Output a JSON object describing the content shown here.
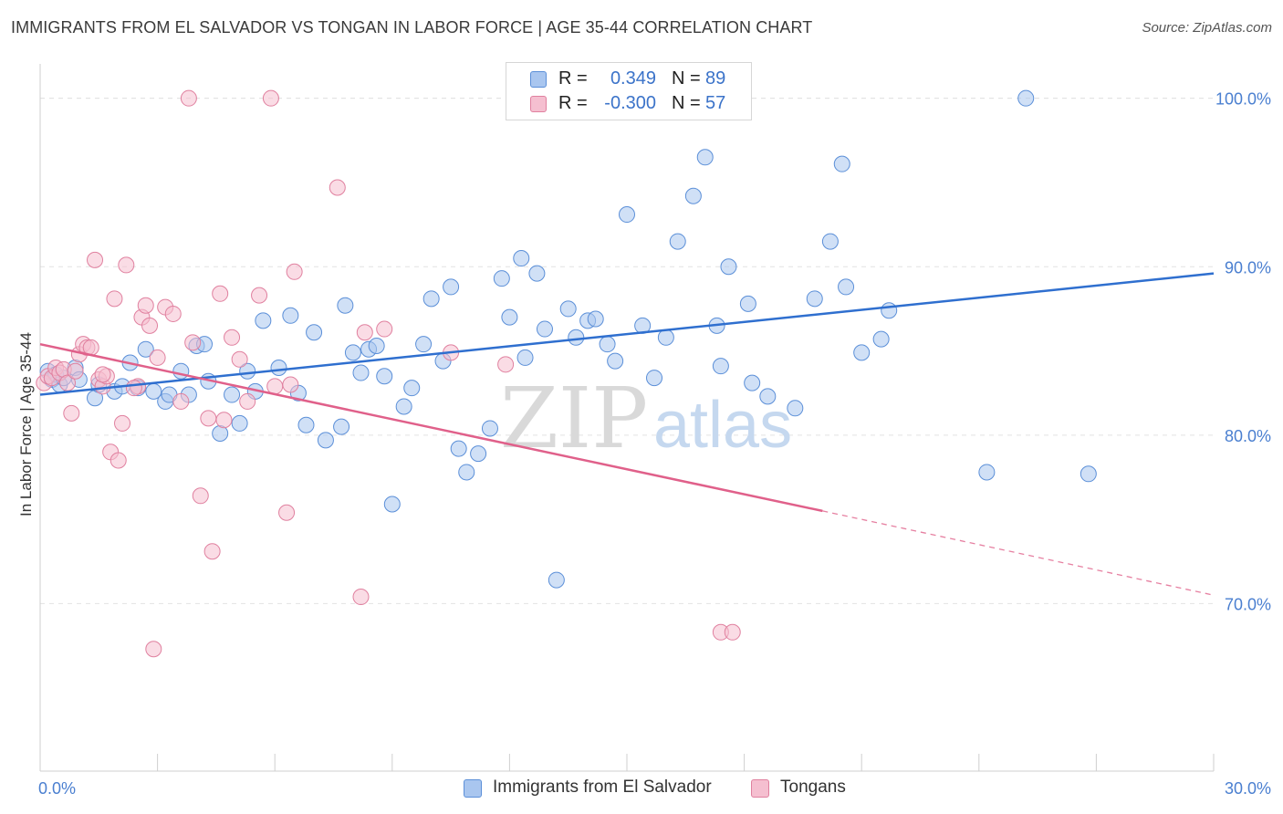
{
  "title": "IMMIGRANTS FROM EL SALVADOR VS TONGAN IN LABOR FORCE | AGE 35-44 CORRELATION CHART",
  "source": "Source: ZipAtlas.com",
  "watermark": {
    "zip": "ZIP",
    "atlas": "atlas"
  },
  "legend": {
    "r_label": "R =",
    "n_label": "N =",
    "rows": [
      {
        "name": "Immigrants from El Salvador",
        "r": "0.349",
        "n": "89",
        "color": "#a9c6ef",
        "stroke": "#5b8fd8"
      },
      {
        "name": "Tongans",
        "r": "-0.300",
        "n": "57",
        "color": "#f5bfd0",
        "stroke": "#e0809f"
      }
    ]
  },
  "chart_data": {
    "type": "scatter",
    "title": "IMMIGRANTS FROM EL SALVADOR VS TONGAN IN LABOR FORCE | AGE 35-44 CORRELATION CHART",
    "xlabel": "",
    "ylabel": "In Labor Force | Age 35-44",
    "xlim": [
      0,
      30
    ],
    "ylim": [
      60,
      101.5
    ],
    "x_tick_labels": [
      "0.0%",
      "30.0%"
    ],
    "y_ticks": [
      70,
      80,
      90,
      100
    ],
    "y_tick_labels": [
      "70.0%",
      "80.0%",
      "90.0%",
      "100.0%"
    ],
    "grid": true,
    "series": [
      {
        "name": "Immigrants from El Salvador",
        "color": "#a9c6ef",
        "stroke": "#5b8fd8",
        "trend": {
          "x0": 0,
          "y0": 82.4,
          "x1": 30,
          "y1": 89.6,
          "color": "#2f6fcf"
        },
        "points": [
          [
            0.2,
            83.8
          ],
          [
            0.3,
            83.3
          ],
          [
            0.4,
            83.6
          ],
          [
            0.5,
            83.0
          ],
          [
            0.6,
            83.4
          ],
          [
            0.9,
            84.0
          ],
          [
            1.0,
            83.3
          ],
          [
            1.4,
            82.2
          ],
          [
            1.5,
            83.0
          ],
          [
            1.9,
            82.6
          ],
          [
            2.1,
            82.9
          ],
          [
            2.3,
            84.3
          ],
          [
            2.5,
            82.8
          ],
          [
            2.7,
            85.1
          ],
          [
            2.9,
            82.6
          ],
          [
            3.2,
            82.0
          ],
          [
            3.3,
            82.4
          ],
          [
            3.6,
            83.8
          ],
          [
            3.8,
            82.4
          ],
          [
            4.0,
            85.3
          ],
          [
            4.2,
            85.4
          ],
          [
            4.3,
            83.2
          ],
          [
            4.6,
            80.1
          ],
          [
            4.9,
            82.4
          ],
          [
            5.1,
            80.7
          ],
          [
            5.3,
            83.8
          ],
          [
            5.5,
            82.6
          ],
          [
            5.7,
            86.8
          ],
          [
            6.1,
            84.0
          ],
          [
            6.4,
            87.1
          ],
          [
            6.6,
            82.5
          ],
          [
            6.8,
            80.6
          ],
          [
            7.0,
            86.1
          ],
          [
            7.3,
            79.7
          ],
          [
            7.7,
            80.5
          ],
          [
            7.8,
            87.7
          ],
          [
            8.0,
            84.9
          ],
          [
            8.2,
            83.7
          ],
          [
            8.4,
            85.1
          ],
          [
            8.6,
            85.3
          ],
          [
            8.8,
            83.5
          ],
          [
            9.0,
            75.9
          ],
          [
            9.3,
            81.7
          ],
          [
            9.5,
            82.8
          ],
          [
            9.8,
            85.4
          ],
          [
            10.0,
            88.1
          ],
          [
            10.3,
            84.4
          ],
          [
            10.5,
            88.8
          ],
          [
            10.7,
            79.2
          ],
          [
            10.9,
            77.8
          ],
          [
            11.2,
            78.9
          ],
          [
            11.5,
            80.4
          ],
          [
            11.8,
            89.3
          ],
          [
            12.0,
            87.0
          ],
          [
            12.3,
            90.5
          ],
          [
            12.4,
            84.6
          ],
          [
            12.7,
            89.6
          ],
          [
            12.9,
            86.3
          ],
          [
            13.2,
            71.4
          ],
          [
            13.5,
            87.5
          ],
          [
            13.7,
            85.8
          ],
          [
            14.0,
            86.8
          ],
          [
            14.2,
            86.9
          ],
          [
            14.5,
            85.4
          ],
          [
            14.7,
            84.4
          ],
          [
            15.0,
            93.1
          ],
          [
            15.4,
            86.5
          ],
          [
            15.7,
            83.4
          ],
          [
            16.0,
            85.8
          ],
          [
            16.3,
            91.5
          ],
          [
            16.7,
            94.2
          ],
          [
            17.0,
            96.5
          ],
          [
            17.3,
            86.5
          ],
          [
            17.4,
            84.1
          ],
          [
            17.6,
            90.0
          ],
          [
            18.1,
            87.8
          ],
          [
            18.2,
            83.1
          ],
          [
            18.6,
            82.3
          ],
          [
            19.3,
            81.6
          ],
          [
            19.8,
            88.1
          ],
          [
            20.2,
            91.5
          ],
          [
            20.5,
            96.1
          ],
          [
            20.6,
            88.8
          ],
          [
            21.0,
            84.9
          ],
          [
            21.5,
            85.7
          ],
          [
            21.7,
            87.4
          ],
          [
            24.2,
            77.8
          ],
          [
            25.2,
            100.0
          ],
          [
            26.8,
            77.7
          ]
        ]
      },
      {
        "name": "Tongans",
        "color": "#f5bfd0",
        "stroke": "#e0809f",
        "trend": {
          "x0": 0,
          "y0": 85.4,
          "x1": 20.0,
          "y1": 75.5,
          "color": "#e0608a",
          "dash_x1": 30,
          "dash_y1": 70.5
        },
        "points": [
          [
            0.1,
            83.1
          ],
          [
            0.2,
            83.5
          ],
          [
            0.3,
            83.4
          ],
          [
            0.4,
            84.0
          ],
          [
            0.5,
            83.7
          ],
          [
            0.6,
            83.9
          ],
          [
            0.7,
            83.1
          ],
          [
            0.8,
            81.3
          ],
          [
            0.9,
            83.8
          ],
          [
            1.0,
            84.8
          ],
          [
            1.1,
            85.4
          ],
          [
            1.2,
            85.2
          ],
          [
            1.3,
            85.2
          ],
          [
            1.4,
            90.4
          ],
          [
            1.5,
            83.3
          ],
          [
            1.6,
            82.9
          ],
          [
            1.7,
            83.5
          ],
          [
            1.8,
            79.0
          ],
          [
            1.9,
            88.1
          ],
          [
            2.0,
            78.5
          ],
          [
            2.1,
            80.7
          ],
          [
            2.2,
            90.1
          ],
          [
            2.5,
            82.9
          ],
          [
            2.6,
            87.0
          ],
          [
            2.7,
            87.7
          ],
          [
            2.8,
            86.5
          ],
          [
            2.9,
            67.3
          ],
          [
            3.0,
            84.6
          ],
          [
            3.2,
            87.6
          ],
          [
            3.4,
            87.2
          ],
          [
            3.6,
            82.0
          ],
          [
            3.8,
            100.0
          ],
          [
            4.1,
            76.4
          ],
          [
            4.3,
            81.0
          ],
          [
            4.4,
            73.1
          ],
          [
            4.6,
            88.4
          ],
          [
            4.7,
            80.9
          ],
          [
            4.9,
            85.8
          ],
          [
            5.1,
            84.5
          ],
          [
            5.3,
            82.0
          ],
          [
            5.6,
            88.3
          ],
          [
            5.9,
            100.0
          ],
          [
            6.0,
            82.9
          ],
          [
            6.3,
            75.4
          ],
          [
            6.4,
            83.0
          ],
          [
            6.5,
            89.7
          ],
          [
            7.6,
            94.7
          ],
          [
            8.2,
            70.4
          ],
          [
            8.3,
            86.1
          ],
          [
            8.8,
            86.3
          ],
          [
            10.5,
            84.9
          ],
          [
            11.9,
            84.2
          ],
          [
            17.4,
            68.3
          ],
          [
            17.7,
            68.3
          ],
          [
            3.9,
            85.5
          ],
          [
            2.4,
            82.8
          ],
          [
            1.6,
            83.6
          ]
        ]
      }
    ]
  }
}
